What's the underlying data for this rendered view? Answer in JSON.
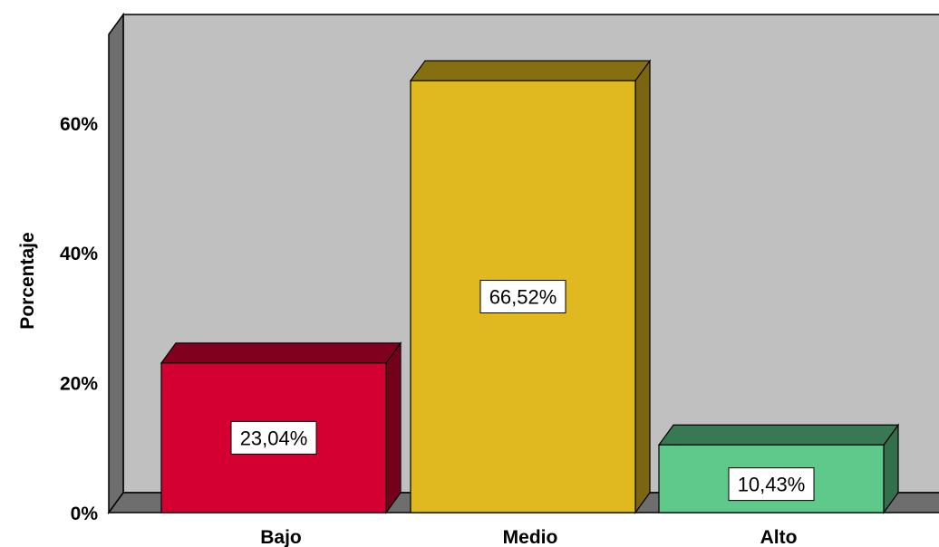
{
  "chart_data": {
    "type": "bar",
    "title": "",
    "xlabel": "",
    "ylabel": "Porcentaje",
    "categories": [
      "Bajo",
      "Medio",
      "Alto"
    ],
    "values": [
      23.04,
      66.52,
      10.43
    ],
    "data_labels": [
      "23,04%",
      "66,52%",
      "10,43%"
    ],
    "colors": [
      "#d50032",
      "#e0b820",
      "#5ec98a"
    ],
    "yticks": [
      {
        "value": 0,
        "label": "0%"
      },
      {
        "value": 20,
        "label": "20%"
      },
      {
        "value": 40,
        "label": "40%"
      },
      {
        "value": 60,
        "label": "60%"
      }
    ],
    "ylim": [
      0,
      77
    ],
    "grid": false,
    "legend": "none",
    "style": "3d",
    "background_color": "#c0c0c0"
  }
}
